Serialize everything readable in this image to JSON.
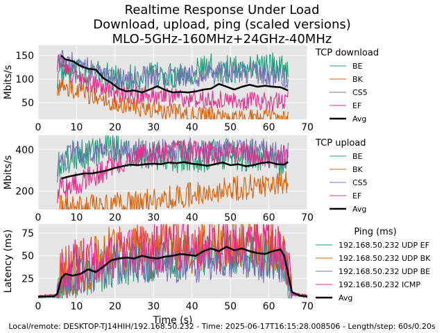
{
  "title_lines": [
    "Realtime Response Under Load",
    "Download, upload, ping (scaled versions)",
    "MLO-5GHz-160MHz+24GHz-40MHz"
  ],
  "footer": "Local/remote: DESKTOP-TJ14HIH/192.168.50.232 - Time: 2025-06-17T16:15:28.008506 - Length/step: 60s/0.20s",
  "colors": {
    "BE": "#1b9e77",
    "BK": "#d95f02",
    "CS5": "#7570b3",
    "EF": "#e7298a",
    "Avg": "#000000",
    "panel_bg": "#e5e5e5"
  },
  "chart_data": [
    {
      "type": "line",
      "ylabel": "Mbits/s",
      "xlabel": "",
      "xlim": [
        0,
        70
      ],
      "ylim": [
        15,
        172
      ],
      "xticks": [
        0,
        10,
        20,
        30,
        40,
        50,
        60,
        70
      ],
      "yticks": [
        50,
        100,
        150
      ],
      "grid": true,
      "legend_placement": "right",
      "legend_title": "TCP download",
      "series": [
        {
          "name": "BE",
          "color": "#1b9e77",
          "x_start": 5,
          "x_end": 65,
          "approx_levels": [
            [
              5,
              110
            ],
            [
              15,
              115
            ],
            [
              20,
              100
            ],
            [
              30,
              105
            ],
            [
              40,
              115
            ],
            [
              45,
              125
            ],
            [
              50,
              120
            ],
            [
              60,
              130
            ],
            [
              65,
              120
            ]
          ],
          "spread": 30
        },
        {
          "name": "BK",
          "color": "#d95f02",
          "x_start": 5,
          "x_end": 65,
          "approx_levels": [
            [
              5,
              85
            ],
            [
              10,
              75
            ],
            [
              20,
              50
            ],
            [
              30,
              35
            ],
            [
              40,
              25
            ],
            [
              50,
              20
            ],
            [
              65,
              18
            ]
          ],
          "spread": 20
        },
        {
          "name": "CS5",
          "color": "#7570b3",
          "x_start": 5,
          "x_end": 65,
          "approx_levels": [
            [
              5,
              140
            ],
            [
              10,
              130
            ],
            [
              20,
              100
            ],
            [
              30,
              105
            ],
            [
              40,
              105
            ],
            [
              50,
              115
            ],
            [
              60,
              110
            ],
            [
              65,
              105
            ]
          ],
          "spread": 25
        },
        {
          "name": "EF",
          "color": "#e7298a",
          "x_start": 5,
          "x_end": 65,
          "approx_levels": [
            [
              5,
              140
            ],
            [
              10,
              100
            ],
            [
              20,
              70
            ],
            [
              30,
              65
            ],
            [
              40,
              60
            ],
            [
              50,
              55
            ],
            [
              60,
              52
            ],
            [
              65,
              55
            ]
          ],
          "spread": 20
        },
        {
          "name": "Avg",
          "color": "#000000",
          "x": [
            6,
            7,
            9,
            11,
            13,
            15,
            17,
            19,
            21,
            23,
            25,
            27,
            29,
            31,
            33,
            35,
            37,
            39,
            41,
            43,
            45,
            47,
            49,
            51,
            53,
            55,
            57,
            59,
            61,
            63,
            65
          ],
          "y": [
            150,
            142,
            138,
            128,
            122,
            120,
            102,
            92,
            80,
            74,
            76,
            72,
            78,
            85,
            77,
            72,
            73,
            72,
            74,
            78,
            80,
            90,
            84,
            78,
            84,
            88,
            84,
            86,
            84,
            83,
            76
          ]
        }
      ]
    },
    {
      "type": "line",
      "ylabel": "Mbits/s",
      "xlabel": "",
      "xlim": [
        0,
        70
      ],
      "ylim": [
        110,
        470
      ],
      "xticks": [
        0,
        10,
        20,
        30,
        40,
        50,
        60,
        70
      ],
      "yticks": [
        200,
        400
      ],
      "grid": true,
      "legend_placement": "right",
      "legend_title": "TCP upload",
      "series": [
        {
          "name": "BE",
          "color": "#1b9e77",
          "x_start": 5,
          "x_end": 65,
          "approx_levels": [
            [
              5,
              320
            ],
            [
              10,
              380
            ],
            [
              20,
              400
            ],
            [
              30,
              380
            ],
            [
              40,
              360
            ],
            [
              50,
              380
            ],
            [
              60,
              360
            ],
            [
              65,
              340
            ]
          ],
          "spread": 80
        },
        {
          "name": "BK",
          "color": "#d95f02",
          "x_start": 5,
          "x_end": 65,
          "approx_levels": [
            [
              5,
              120
            ],
            [
              15,
              125
            ],
            [
              25,
              140
            ],
            [
              35,
              170
            ],
            [
              45,
              200
            ],
            [
              55,
              220
            ],
            [
              65,
              240
            ]
          ],
          "spread": 60
        },
        {
          "name": "CS5",
          "color": "#7570b3",
          "x_start": 5,
          "x_end": 65,
          "approx_levels": [
            [
              5,
              330
            ],
            [
              10,
              390
            ],
            [
              20,
              400
            ],
            [
              30,
              390
            ],
            [
              40,
              400
            ],
            [
              50,
              390
            ],
            [
              60,
              400
            ],
            [
              65,
              380
            ]
          ],
          "spread": 60
        },
        {
          "name": "EF",
          "color": "#e7298a",
          "x_start": 5,
          "x_end": 65,
          "approx_levels": [
            [
              5,
              200
            ],
            [
              10,
              240
            ],
            [
              15,
              270
            ],
            [
              20,
              330
            ],
            [
              30,
              380
            ],
            [
              40,
              390
            ],
            [
              50,
              380
            ],
            [
              60,
              370
            ],
            [
              65,
              360
            ]
          ],
          "spread": 60
        },
        {
          "name": "Avg",
          "color": "#000000",
          "x": [
            6,
            8,
            10,
            12,
            14,
            16,
            18,
            20,
            22,
            24,
            26,
            28,
            30,
            32,
            34,
            36,
            38,
            40,
            42,
            44,
            46,
            48,
            50,
            52,
            54,
            56,
            58,
            60,
            62,
            64,
            65
          ],
          "y": [
            260,
            270,
            278,
            285,
            285,
            292,
            300,
            312,
            320,
            328,
            325,
            330,
            332,
            330,
            338,
            335,
            340,
            332,
            328,
            322,
            330,
            338,
            325,
            330,
            320,
            325,
            335,
            340,
            330,
            328,
            340
          ]
        }
      ]
    },
    {
      "type": "line",
      "ylabel": "Latency (ms)",
      "xlabel": "Time (s)",
      "xlim": [
        0,
        70
      ],
      "ylim": [
        3,
        85
      ],
      "xticks": [
        0,
        10,
        20,
        30,
        40,
        50,
        60,
        70
      ],
      "yticks": [
        25,
        50,
        75
      ],
      "grid": true,
      "legend_placement": "right",
      "legend_title": "Ping (ms)",
      "series": [
        {
          "name": "192.168.50.232 UDP EF",
          "color": "#1b9e77",
          "x_start": 0,
          "x_end": 70,
          "approx_levels": [
            [
              0,
              5
            ],
            [
              5,
              6
            ],
            [
              6,
              20
            ],
            [
              10,
              25
            ],
            [
              20,
              40
            ],
            [
              30,
              45
            ],
            [
              40,
              50
            ],
            [
              50,
              52
            ],
            [
              60,
              50
            ],
            [
              64,
              45
            ],
            [
              66,
              8
            ],
            [
              70,
              5
            ]
          ],
          "spread": 25
        },
        {
          "name": "192.168.50.232 UDP BK",
          "color": "#d95f02",
          "x_start": 0,
          "x_end": 70,
          "approx_levels": [
            [
              0,
              5
            ],
            [
              5,
              6
            ],
            [
              6,
              30
            ],
            [
              10,
              35
            ],
            [
              20,
              55
            ],
            [
              30,
              55
            ],
            [
              40,
              60
            ],
            [
              50,
              62
            ],
            [
              60,
              60
            ],
            [
              64,
              55
            ],
            [
              66,
              8
            ],
            [
              70,
              5
            ]
          ],
          "spread": 30
        },
        {
          "name": "192.168.50.232 UDP BE",
          "color": "#7570b3",
          "x_start": 0,
          "x_end": 70,
          "approx_levels": [
            [
              0,
              5
            ],
            [
              5,
              6
            ],
            [
              6,
              20
            ],
            [
              10,
              25
            ],
            [
              20,
              35
            ],
            [
              30,
              40
            ],
            [
              40,
              40
            ],
            [
              50,
              42
            ],
            [
              60,
              40
            ],
            [
              64,
              38
            ],
            [
              66,
              8
            ],
            [
              70,
              5
            ]
          ],
          "spread": 20
        },
        {
          "name": "192.168.50.232 ICMP",
          "color": "#e7298a",
          "x_start": 0,
          "x_end": 70,
          "approx_levels": [
            [
              0,
              5
            ],
            [
              5,
              6
            ],
            [
              6,
              30
            ],
            [
              10,
              40
            ],
            [
              20,
              55
            ],
            [
              30,
              60
            ],
            [
              40,
              60
            ],
            [
              50,
              62
            ],
            [
              60,
              62
            ],
            [
              64,
              58
            ],
            [
              66,
              8
            ],
            [
              70,
              5
            ]
          ],
          "spread": 30
        },
        {
          "name": "Avg",
          "color": "#000000",
          "x": [
            0,
            4,
            5,
            6,
            7,
            9,
            11,
            13,
            15,
            17,
            19,
            21,
            23,
            25,
            27,
            29,
            31,
            33,
            35,
            37,
            39,
            41,
            43,
            45,
            47,
            49,
            51,
            53,
            55,
            57,
            59,
            61,
            63,
            64,
            65,
            66,
            68,
            70
          ],
          "y": [
            5,
            5,
            8,
            25,
            30,
            28,
            30,
            35,
            32,
            38,
            45,
            47,
            48,
            47,
            50,
            48,
            47,
            49,
            50,
            52,
            51,
            50,
            55,
            58,
            55,
            60,
            56,
            58,
            55,
            53,
            52,
            55,
            57,
            50,
            30,
            10,
            6,
            5
          ]
        }
      ]
    }
  ]
}
